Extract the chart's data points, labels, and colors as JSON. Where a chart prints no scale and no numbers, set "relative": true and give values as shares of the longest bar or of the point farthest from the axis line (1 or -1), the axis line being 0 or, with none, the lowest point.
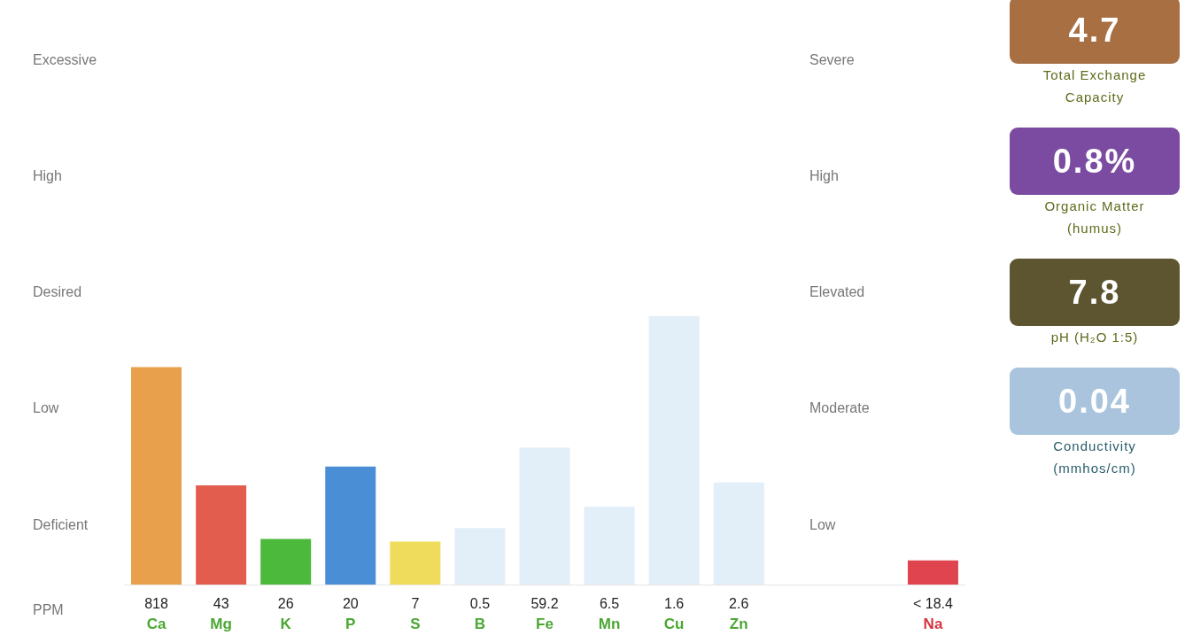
{
  "chart_data": [
    {
      "type": "bar",
      "relative": true,
      "categories": [
        "818\nCa",
        "43\nMg",
        "26\nK",
        "20\nP",
        "7\nS",
        "0.5\nB",
        "59.2\nFe",
        "6.5\nMn",
        "1.6\nCu",
        "2.6\nZn",
        null,
        null,
        "< 18.4\nNa"
      ],
      "series": [
        {
          "colors": [
            "#e8a04c",
            "#e35d4f",
            "#4cb83c",
            "#4a8fd6",
            "#f0dc5c",
            "#e2eef8",
            "#e2eef8",
            "#e2eef8",
            "#e2eef8",
            "#e2eef8",
            null,
            null,
            "#e0454f"
          ],
          "values": [
            0.81,
            0.37,
            0.17,
            0.44,
            0.16,
            0.21,
            0.51,
            0.29,
            1,
            0.38,
            null,
            null,
            0.09
          ]
        }
      ],
      "annotations": [
        "Excessive",
        "High",
        "Desired",
        "Low",
        "Deficient",
        "Severe",
        "High",
        "Elevated",
        "Moderate",
        "Low",
        "PPM"
      ],
      "grid": false,
      "legend": false
    },
    {
      "type": "other",
      "categories": [
        "Total Exchange Capacity",
        "Organic Matter (humus)",
        "pH (H₂O 1:5)",
        "Conductivity (mmhos/cm)"
      ],
      "value_labels": [
        "4.7",
        "0.8%",
        "7.8",
        "0.04"
      ],
      "colors": [
        "#a86f43",
        "#7a4ba0",
        "#5c5530",
        "#a9c4dc"
      ]
    }
  ]
}
